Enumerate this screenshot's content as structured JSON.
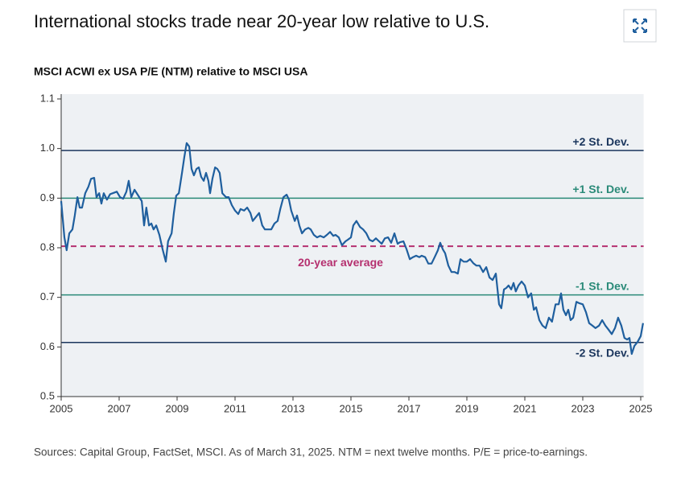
{
  "chart_data": {
    "type": "line",
    "title": "International stocks trade near 20-year low relative to U.S.",
    "subtitle": "MSCI ACWI ex USA P/E (NTM) relative to MSCI USA",
    "source": "Sources: Capital Group, FactSet, MSCI. As of March 31, 2025. NTM = next twelve months. P/E = price-to-earnings.",
    "xlim": [
      2005,
      2025.1
    ],
    "xticks": [
      2005,
      2007,
      2009,
      2011,
      2013,
      2015,
      2017,
      2019,
      2021,
      2023,
      2025
    ],
    "ylim": [
      0.5,
      1.1
    ],
    "yticks": [
      0.5,
      0.6,
      0.7,
      0.8,
      0.9,
      {
        "value": 1,
        "label": "1.0"
      },
      1.1
    ],
    "reference_lines": [
      {
        "label": "+2 St. Dev.",
        "value": 0.996,
        "color": "#1b365d",
        "style": "solid"
      },
      {
        "label": "+1 St. Dev.",
        "value": 0.9,
        "color": "#2a8a78",
        "style": "solid"
      },
      {
        "label": "20-year average",
        "value": 0.803,
        "color": "#b5306f",
        "style": "dashed"
      },
      {
        "label": "-1 St. Dev.",
        "value": 0.705,
        "color": "#2a8a78",
        "style": "solid"
      },
      {
        "label": "-2 St. Dev.",
        "value": 0.609,
        "color": "#1b365d",
        "style": "solid"
      }
    ],
    "series": [
      {
        "color": "#1f5f9e",
        "x": [
          2005.0,
          2005.11,
          2005.19,
          2005.28,
          2005.39,
          2005.47,
          2005.56,
          2005.64,
          2005.72,
          2005.83,
          2005.94,
          2006.03,
          2006.14,
          2006.22,
          2006.31,
          2006.39,
          2006.47,
          2006.58,
          2006.69,
          2006.78,
          2006.92,
          2007.03,
          2007.14,
          2007.25,
          2007.33,
          2007.42,
          2007.53,
          2007.64,
          2007.78,
          2007.86,
          2007.94,
          2008.03,
          2008.11,
          2008.19,
          2008.28,
          2008.39,
          2008.5,
          2008.61,
          2008.69,
          2008.81,
          2008.89,
          2008.97,
          2009.06,
          2009.17,
          2009.25,
          2009.33,
          2009.42,
          2009.5,
          2009.58,
          2009.67,
          2009.75,
          2009.83,
          2009.92,
          2010.0,
          2010.08,
          2010.14,
          2010.22,
          2010.31,
          2010.39,
          2010.47,
          2010.56,
          2010.69,
          2010.78,
          2010.89,
          2011.0,
          2011.11,
          2011.19,
          2011.31,
          2011.42,
          2011.53,
          2011.61,
          2011.72,
          2011.83,
          2011.94,
          2012.03,
          2012.14,
          2012.25,
          2012.36,
          2012.47,
          2012.56,
          2012.67,
          2012.78,
          2012.86,
          2012.94,
          2013.06,
          2013.14,
          2013.22,
          2013.31,
          2013.42,
          2013.53,
          2013.61,
          2013.72,
          2013.83,
          2013.94,
          2014.06,
          2014.17,
          2014.28,
          2014.39,
          2014.47,
          2014.58,
          2014.69,
          2014.81,
          2014.89,
          2015.0,
          2015.08,
          2015.19,
          2015.31,
          2015.42,
          2015.53,
          2015.64,
          2015.75,
          2015.86,
          2015.97,
          2016.06,
          2016.17,
          2016.28,
          2016.39,
          2016.5,
          2016.61,
          2016.69,
          2016.81,
          2016.92,
          2017.03,
          2017.14,
          2017.25,
          2017.36,
          2017.44,
          2017.56,
          2017.67,
          2017.78,
          2017.89,
          2018.0,
          2018.08,
          2018.17,
          2018.25,
          2018.36,
          2018.47,
          2018.58,
          2018.69,
          2018.78,
          2018.89,
          2019.0,
          2019.11,
          2019.22,
          2019.33,
          2019.44,
          2019.56,
          2019.67,
          2019.78,
          2019.89,
          2020.0,
          2020.11,
          2020.19,
          2020.28,
          2020.36,
          2020.44,
          2020.53,
          2020.61,
          2020.69,
          2020.78,
          2020.89,
          2021.0,
          2021.11,
          2021.22,
          2021.31,
          2021.39,
          2021.5,
          2021.61,
          2021.72,
          2021.83,
          2021.94,
          2022.06,
          2022.17,
          2022.25,
          2022.33,
          2022.42,
          2022.5,
          2022.58,
          2022.67,
          2022.78,
          2022.89,
          2023.0,
          2023.11,
          2023.22,
          2023.33,
          2023.44,
          2023.56,
          2023.67,
          2023.78,
          2023.89,
          2024.0,
          2024.11,
          2024.22,
          2024.33,
          2024.44,
          2024.53,
          2024.61,
          2024.69,
          2024.78,
          2024.89,
          2025.0,
          2025.08
        ],
        "values": [
          0.894,
          0.821,
          0.795,
          0.829,
          0.837,
          0.865,
          0.902,
          0.881,
          0.881,
          0.91,
          0.923,
          0.939,
          0.941,
          0.902,
          0.91,
          0.889,
          0.91,
          0.897,
          0.908,
          0.91,
          0.913,
          0.902,
          0.899,
          0.913,
          0.935,
          0.902,
          0.917,
          0.907,
          0.894,
          0.845,
          0.881,
          0.845,
          0.849,
          0.837,
          0.845,
          0.826,
          0.797,
          0.772,
          0.813,
          0.829,
          0.87,
          0.905,
          0.91,
          0.951,
          0.983,
          1.011,
          1.004,
          0.959,
          0.946,
          0.959,
          0.962,
          0.943,
          0.935,
          0.951,
          0.935,
          0.91,
          0.939,
          0.962,
          0.959,
          0.951,
          0.91,
          0.902,
          0.902,
          0.886,
          0.875,
          0.868,
          0.878,
          0.875,
          0.881,
          0.87,
          0.854,
          0.862,
          0.87,
          0.845,
          0.837,
          0.837,
          0.837,
          0.849,
          0.854,
          0.878,
          0.902,
          0.907,
          0.897,
          0.875,
          0.854,
          0.865,
          0.845,
          0.829,
          0.837,
          0.84,
          0.837,
          0.826,
          0.821,
          0.824,
          0.821,
          0.826,
          0.832,
          0.824,
          0.826,
          0.821,
          0.805,
          0.813,
          0.816,
          0.821,
          0.845,
          0.854,
          0.842,
          0.837,
          0.829,
          0.816,
          0.813,
          0.819,
          0.813,
          0.808,
          0.819,
          0.821,
          0.81,
          0.829,
          0.808,
          0.811,
          0.813,
          0.797,
          0.777,
          0.781,
          0.784,
          0.781,
          0.784,
          0.781,
          0.768,
          0.768,
          0.781,
          0.795,
          0.81,
          0.797,
          0.789,
          0.764,
          0.751,
          0.751,
          0.748,
          0.777,
          0.772,
          0.772,
          0.777,
          0.769,
          0.764,
          0.764,
          0.751,
          0.761,
          0.74,
          0.735,
          0.748,
          0.686,
          0.678,
          0.716,
          0.719,
          0.724,
          0.716,
          0.729,
          0.712,
          0.724,
          0.732,
          0.724,
          0.7,
          0.708,
          0.675,
          0.68,
          0.654,
          0.643,
          0.638,
          0.659,
          0.651,
          0.686,
          0.686,
          0.708,
          0.675,
          0.664,
          0.675,
          0.654,
          0.659,
          0.691,
          0.688,
          0.686,
          0.67,
          0.648,
          0.643,
          0.638,
          0.643,
          0.654,
          0.643,
          0.635,
          0.626,
          0.638,
          0.659,
          0.643,
          0.618,
          0.615,
          0.618,
          0.586,
          0.602,
          0.61,
          0.622,
          0.648
        ]
      }
    ]
  }
}
